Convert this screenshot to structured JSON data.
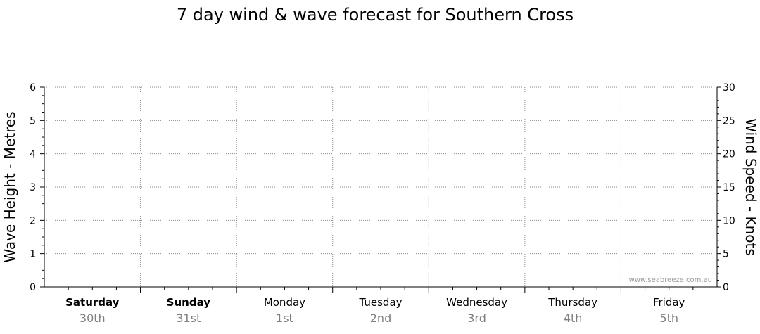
{
  "chart_data": {
    "type": "line",
    "title": "7 day wind & wave forecast for Southern Cross",
    "ylabel_left": "Wave Height - Metres",
    "ylabel_right": "Wind Speed - Knots",
    "ylim_left": [
      0,
      6
    ],
    "ylim_right": [
      0,
      30
    ],
    "yticks_left": [
      0,
      1,
      2,
      3,
      4,
      5,
      6
    ],
    "yticks_right": [
      0,
      5,
      10,
      15,
      20,
      25,
      30
    ],
    "grid": true,
    "days": [
      {
        "name": "Saturday",
        "date": "30th",
        "bold": true
      },
      {
        "name": "Sunday",
        "date": "31st",
        "bold": true
      },
      {
        "name": "Monday",
        "date": "1st",
        "bold": false
      },
      {
        "name": "Tuesday",
        "date": "2nd",
        "bold": false
      },
      {
        "name": "Wednesday",
        "date": "3rd",
        "bold": false
      },
      {
        "name": "Thursday",
        "date": "4th",
        "bold": false
      },
      {
        "name": "Friday",
        "date": "5th",
        "bold": false
      }
    ],
    "series": [],
    "watermark": "www.seabreeze.com.au"
  }
}
